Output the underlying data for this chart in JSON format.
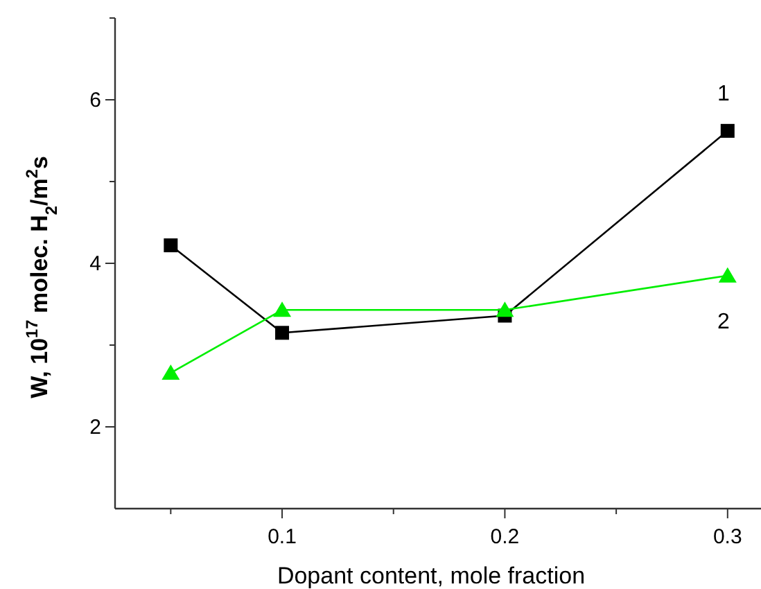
{
  "chart_data": {
    "type": "line",
    "xlabel": "Dopant content, mole fraction",
    "ylabel": "W, 10$^{17}$ molec. H$_{2}$/m$^{2}$s",
    "x": [
      0.05,
      0.1,
      0.2,
      0.3
    ],
    "series": [
      {
        "name": "1",
        "color": "#000000",
        "marker": "square",
        "values": [
          4.22,
          3.15,
          3.36,
          5.62
        ]
      },
      {
        "name": "2",
        "color": "#00ee00",
        "marker": "triangle",
        "values": [
          2.66,
          3.43,
          3.43,
          3.85
        ]
      }
    ],
    "xlim": [
      0.025,
      0.315
    ],
    "xticks": [
      {
        "value": 0.05,
        "label": null
      },
      0.1,
      {
        "value": 0.15,
        "label": null
      },
      0.2,
      {
        "value": 0.25,
        "label": null
      },
      0.3
    ],
    "ylim": [
      1,
      7
    ],
    "yticks": [
      2,
      {
        "value": 3,
        "label": null
      },
      4,
      {
        "value": 5,
        "label": null
      },
      6,
      {
        "value": 7,
        "label": null
      }
    ],
    "grid": false,
    "line_style": "solid"
  }
}
